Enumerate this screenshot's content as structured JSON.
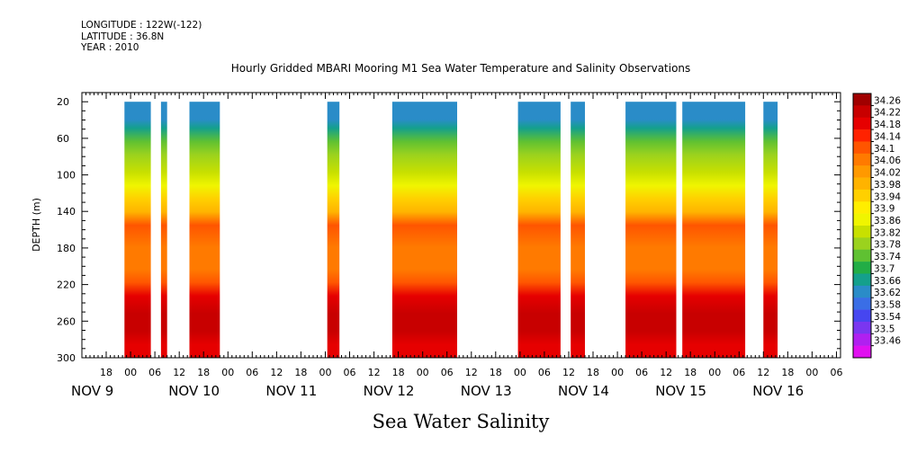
{
  "header": {
    "longitude": "LONGITUDE : 122W(-122)",
    "latitude": "LATITUDE : 36.8N",
    "year": "YEAR : 2010"
  },
  "chart_data": {
    "type": "heatmap",
    "title": "Hourly Gridded MBARI Mooring M1 Sea Water Temperature and Salinity Observations",
    "variable_title": "Sea Water Salinity",
    "ylabel": "DEPTH (m)",
    "xlabel": "",
    "x_units": "hours since NOV 9 00:00",
    "xlim": [
      12,
      199
    ],
    "ylim": [
      300,
      10
    ],
    "y_inverted": true,
    "y_ticks": [
      20,
      60,
      100,
      140,
      180,
      220,
      260,
      300
    ],
    "x_hour_ticks": [
      {
        "label": "18",
        "x": 18
      },
      {
        "label": "00",
        "x": 24
      },
      {
        "label": "06",
        "x": 30
      },
      {
        "label": "12",
        "x": 36
      },
      {
        "label": "18",
        "x": 42
      },
      {
        "label": "00",
        "x": 48
      },
      {
        "label": "06",
        "x": 54
      },
      {
        "label": "12",
        "x": 60
      },
      {
        "label": "18",
        "x": 66
      },
      {
        "label": "00",
        "x": 72
      },
      {
        "label": "06",
        "x": 78
      },
      {
        "label": "12",
        "x": 84
      },
      {
        "label": "18",
        "x": 90
      },
      {
        "label": "00",
        "x": 96
      },
      {
        "label": "06",
        "x": 102
      },
      {
        "label": "12",
        "x": 108
      },
      {
        "label": "18",
        "x": 114
      },
      {
        "label": "00",
        "x": 120
      },
      {
        "label": "06",
        "x": 126
      },
      {
        "label": "12",
        "x": 132
      },
      {
        "label": "18",
        "x": 138
      },
      {
        "label": "00",
        "x": 144
      },
      {
        "label": "06",
        "x": 150
      },
      {
        "label": "12",
        "x": 156
      },
      {
        "label": "18",
        "x": 162
      },
      {
        "label": "00",
        "x": 168
      },
      {
        "label": "06",
        "x": 174
      },
      {
        "label": "12",
        "x": 180
      },
      {
        "label": "18",
        "x": 186
      },
      {
        "label": "00",
        "x": 192
      },
      {
        "label": "06",
        "x": 198
      }
    ],
    "x_day_labels": [
      {
        "label": "NOV  9",
        "x": 12
      },
      {
        "label": "NOV 10",
        "x": 36
      },
      {
        "label": "NOV 11",
        "x": 60
      },
      {
        "label": "NOV 12",
        "x": 84
      },
      {
        "label": "NOV 13",
        "x": 108
      },
      {
        "label": "NOV 14",
        "x": 132
      },
      {
        "label": "NOV 15",
        "x": 156
      },
      {
        "label": "NOV 16",
        "x": 180
      }
    ],
    "data_blocks": [
      {
        "start": 22.5,
        "end": 29.0
      },
      {
        "start": 31.5,
        "end": 33.0
      },
      {
        "start": 38.5,
        "end": 46.0
      },
      {
        "start": 72.5,
        "end": 75.5
      },
      {
        "start": 88.5,
        "end": 104.5
      },
      {
        "start": 119.5,
        "end": 130.0
      },
      {
        "start": 132.5,
        "end": 136.0
      },
      {
        "start": 146.0,
        "end": 158.5
      },
      {
        "start": 160.0,
        "end": 175.5
      },
      {
        "start": 180.0,
        "end": 183.5
      }
    ],
    "depth_profile": [
      {
        "depth": 10,
        "value": 33.58
      },
      {
        "depth": 20,
        "value": 33.58
      },
      {
        "depth": 30,
        "value": 33.62
      },
      {
        "depth": 40,
        "value": 33.66
      },
      {
        "depth": 55,
        "value": 33.7
      },
      {
        "depth": 70,
        "value": 33.74
      },
      {
        "depth": 90,
        "value": 33.78
      },
      {
        "depth": 105,
        "value": 33.82
      },
      {
        "depth": 120,
        "value": 33.9
      },
      {
        "depth": 135,
        "value": 33.98
      },
      {
        "depth": 150,
        "value": 34.06
      },
      {
        "depth": 175,
        "value": 34.04
      },
      {
        "depth": 200,
        "value": 34.04
      },
      {
        "depth": 215,
        "value": 34.08
      },
      {
        "depth": 230,
        "value": 34.14
      },
      {
        "depth": 250,
        "value": 34.2
      },
      {
        "depth": 270,
        "value": 34.18
      },
      {
        "depth": 285,
        "value": 34.14
      },
      {
        "depth": 300,
        "value": 34.14
      }
    ],
    "colorbar": {
      "labels": [
        "34.26",
        "34.22",
        "34.18",
        "34.14",
        "34.1",
        "34.06",
        "34.02",
        "33.98",
        "33.94",
        "33.9",
        "33.86",
        "33.82",
        "33.78",
        "33.74",
        "33.7",
        "33.66",
        "33.62",
        "33.58",
        "33.54",
        "33.5",
        "33.46"
      ],
      "values": [
        34.26,
        34.22,
        34.18,
        34.14,
        34.1,
        34.06,
        34.02,
        33.98,
        33.94,
        33.9,
        33.86,
        33.82,
        33.78,
        33.74,
        33.7,
        33.66,
        33.62,
        33.58,
        33.54,
        33.5,
        33.46
      ],
      "colors": [
        "#a00000",
        "#c80000",
        "#e60000",
        "#ff2200",
        "#ff5500",
        "#ff7a00",
        "#ff9900",
        "#ffb300",
        "#ffd000",
        "#ffee00",
        "#f0f500",
        "#c8e000",
        "#9bd21e",
        "#5fc132",
        "#22ad46",
        "#14a08c",
        "#2a8cc8",
        "#3a6ee6",
        "#4646f0",
        "#7a36f0",
        "#b020f0",
        "#e010f0"
      ]
    }
  }
}
